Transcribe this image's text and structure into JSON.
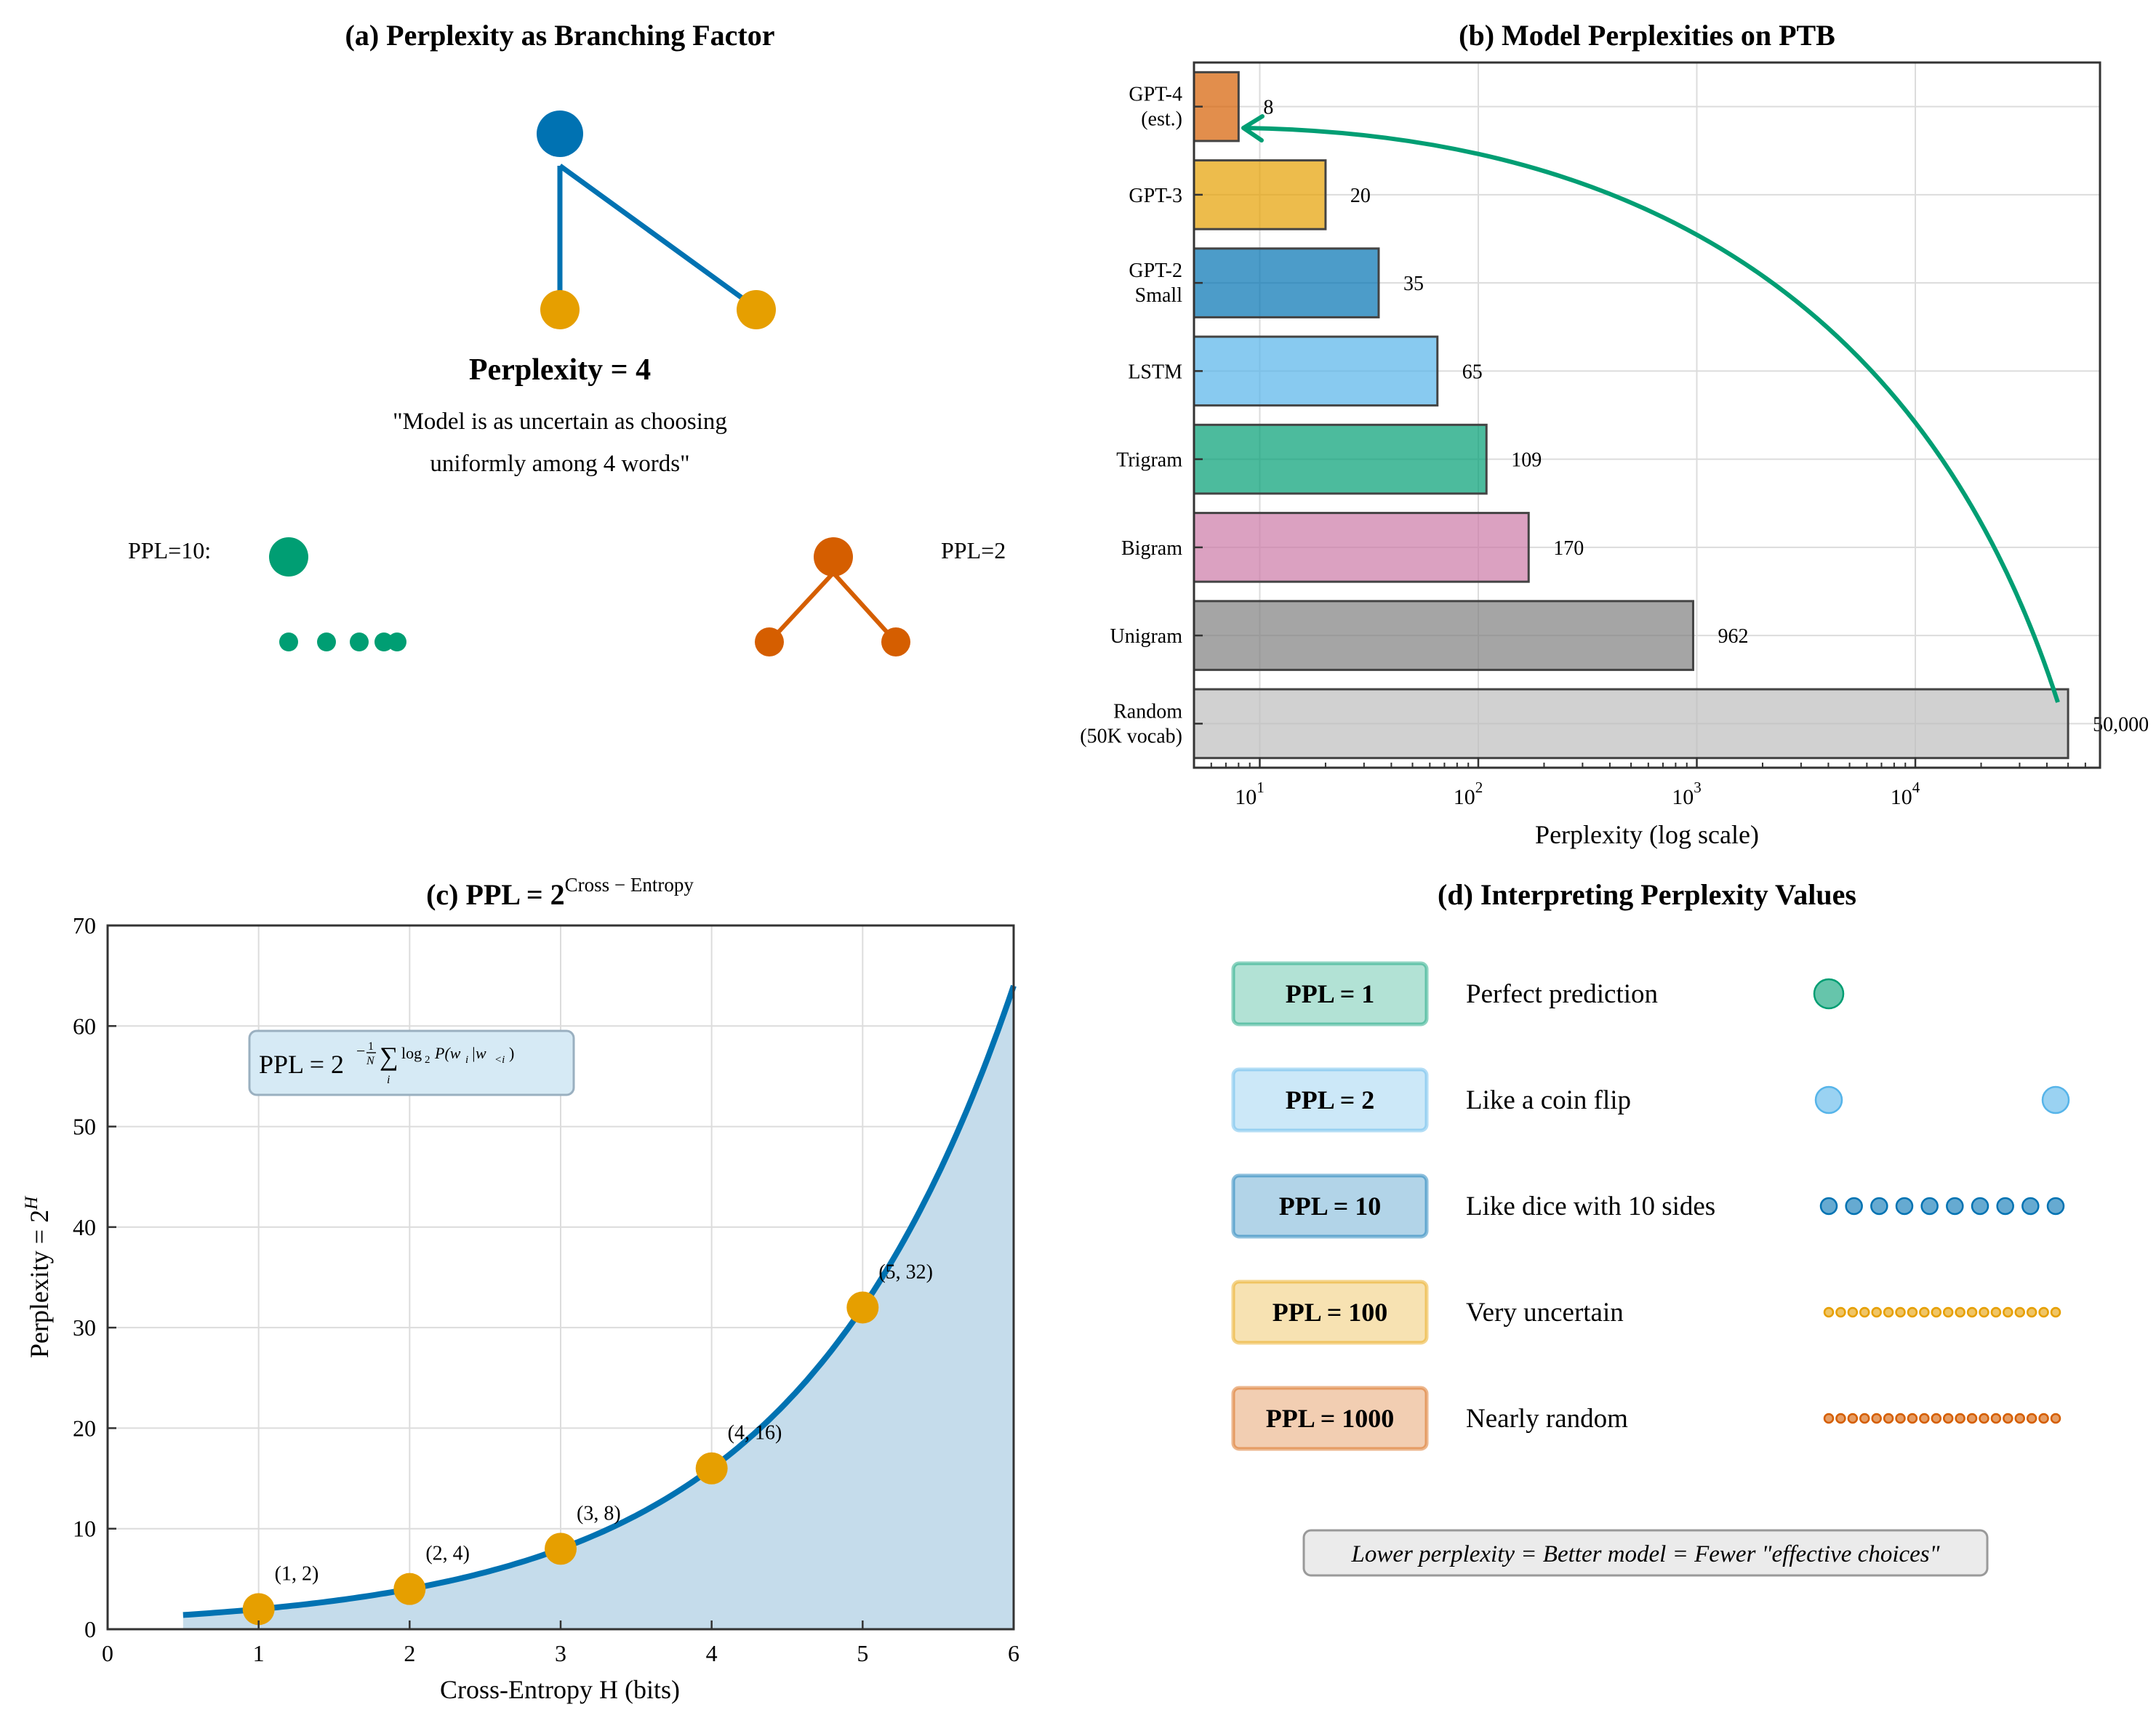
{
  "colors": {
    "blue": "#0072B2",
    "orange": "#E69F00",
    "green": "#009E73",
    "vermillion": "#D55E00",
    "skyblue": "#56B4E9",
    "pink": "#CC79A7",
    "gray": "#7f7f7f",
    "lightgray": "#bdbdbd",
    "gpt4": "#D55E00",
    "fill": "#c5dceb",
    "grid": "#d9d9d9"
  },
  "panel_a": {
    "title": "(a) Perplexity as Branching Factor",
    "label": "Perplexity = 4",
    "quote_line1": "\"Model is as uncertain as choosing",
    "quote_line2": "uniformly among 4 words\"",
    "left_label": "PPL=10:",
    "right_label": "PPL=2"
  },
  "panel_d": {
    "title": "(d) Interpreting Perplexity Values",
    "rows": [
      {
        "badge": "PPL = 1",
        "desc": "Perfect prediction",
        "count": 1,
        "color": "#009E73"
      },
      {
        "badge": "PPL = 2",
        "desc": "Like a coin flip",
        "count": 2,
        "color": "#56B4E9"
      },
      {
        "badge": "PPL = 10",
        "desc": "Like dice with 10 sides",
        "count": 10,
        "color": "#0072B2"
      },
      {
        "badge": "PPL = 100",
        "desc": "Very uncertain",
        "count": 20,
        "color": "#E69F00"
      },
      {
        "badge": "PPL = 1000",
        "desc": "Nearly random",
        "count": 20,
        "color": "#D55E00"
      }
    ],
    "footer": "Lower perplexity = Better model = Fewer \"effective choices\""
  },
  "chart_data": [
    {
      "type": "bar",
      "orientation": "horizontal",
      "title": "(b) Model Perplexities on PTB",
      "xlabel": "Perplexity (log scale)",
      "xscale": "log",
      "xlim": [
        5,
        70000
      ],
      "xticks": [
        {
          "base": "10",
          "exp": "1"
        },
        {
          "base": "10",
          "exp": "2"
        },
        {
          "base": "10",
          "exp": "3"
        },
        {
          "base": "10",
          "exp": "4"
        }
      ],
      "categories": [
        {
          "line1": "GPT-4",
          "line2": "(est.)"
        },
        {
          "line1": "GPT-3",
          "line2": ""
        },
        {
          "line1": "GPT-2",
          "line2": "Small"
        },
        {
          "line1": "LSTM",
          "line2": ""
        },
        {
          "line1": "Trigram",
          "line2": ""
        },
        {
          "line1": "Bigram",
          "line2": ""
        },
        {
          "line1": "Unigram",
          "line2": ""
        },
        {
          "line1": "Random",
          "line2": "(50K vocab)"
        }
      ],
      "values": [
        8,
        20,
        35,
        65,
        109,
        170,
        962,
        50000
      ],
      "value_labels": [
        "8",
        "20",
        "35",
        "65",
        "109",
        "170",
        "962",
        "50,000"
      ],
      "bar_colors": [
        "#D55E00",
        "#E69F00",
        "#0072B2",
        "#56B4E9",
        "#009E73",
        "#CC79A7",
        "#7f7f7f",
        "#bdbdbd"
      ],
      "annotation": "arrow from Random to GPT-4",
      "grid": true
    },
    {
      "type": "line",
      "title_prefix": "(c) PPL = 2",
      "title_sup": "Cross − Entropy",
      "xlabel": "Cross-Entropy H (bits)",
      "ylabel_base": "Perplexity = 2",
      "ylabel_sup": "H",
      "xlim": [
        0,
        6
      ],
      "ylim": [
        0,
        70
      ],
      "xticks": [
        "0",
        "1",
        "2",
        "3",
        "4",
        "5",
        "6"
      ],
      "yticks": [
        "0",
        "10",
        "20",
        "30",
        "40",
        "50",
        "60",
        "70"
      ],
      "curve": {
        "function": "2^H",
        "x_range": [
          0.5,
          6
        ]
      },
      "points": [
        {
          "x": 1,
          "y": 2,
          "label": "(1, 2)"
        },
        {
          "x": 2,
          "y": 4,
          "label": "(2, 4)"
        },
        {
          "x": 3,
          "y": 8,
          "label": "(3, 8)"
        },
        {
          "x": 4,
          "y": 16,
          "label": "(4, 16)"
        },
        {
          "x": 5,
          "y": 32,
          "label": "(5, 32)"
        }
      ],
      "formula": {
        "lhs": "PPL = 2",
        "exp1": "−",
        "frac_num": "1",
        "frac_den": "N",
        "sum": "∑",
        "sum_sub": "i",
        "log": "log",
        "log_sub": "2",
        "arg": "P(w",
        "arg_sub": "i",
        "arg_mid": "|w",
        "arg_sub2": "<i",
        "arg_end": ")"
      },
      "grid": true
    }
  ]
}
